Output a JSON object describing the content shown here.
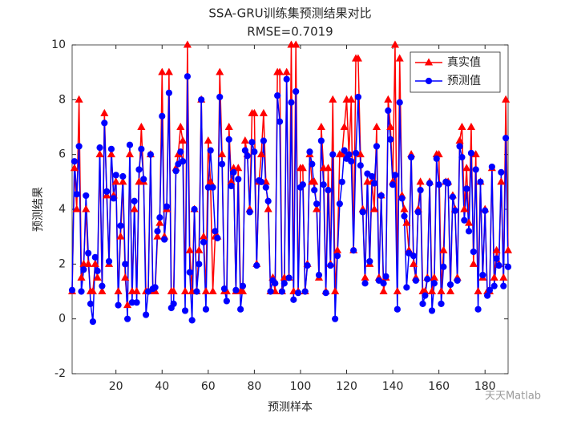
{
  "chart_data": {
    "type": "line",
    "title": "SSA-GRU训练集预测结果对比",
    "subtitle": "RMSE=0.7019",
    "xlabel": "预测样本",
    "ylabel": "预测结果",
    "watermark": "天天Matlab",
    "legend": "northeast",
    "xlim": [
      1,
      190
    ],
    "ylim": [
      -2,
      10
    ],
    "xticks": [
      20,
      40,
      60,
      80,
      100,
      120,
      140,
      160,
      180
    ],
    "yticks": [
      -2,
      0,
      2,
      4,
      6,
      8,
      10
    ],
    "x": [
      1,
      2,
      3,
      4,
      5,
      6,
      7,
      8,
      9,
      10,
      11,
      12,
      13,
      14,
      15,
      16,
      17,
      18,
      19,
      20,
      21,
      22,
      23,
      24,
      25,
      26,
      27,
      28,
      29,
      30,
      31,
      32,
      33,
      34,
      35,
      36,
      37,
      38,
      39,
      40,
      41,
      42,
      43,
      44,
      45,
      46,
      47,
      48,
      49,
      50,
      51,
      52,
      53,
      54,
      55,
      56,
      57,
      58,
      59,
      60,
      61,
      62,
      63,
      64,
      65,
      66,
      67,
      68,
      69,
      70,
      71,
      72,
      73,
      74,
      75,
      76,
      77,
      78,
      79,
      80,
      81,
      82,
      83,
      84,
      85,
      86,
      87,
      88,
      89,
      90,
      91,
      92,
      93,
      94,
      95,
      96,
      97,
      98,
      99,
      100,
      101,
      102,
      103,
      104,
      105,
      106,
      107,
      108,
      109,
      110,
      111,
      112,
      113,
      114,
      115,
      116,
      117,
      118,
      119,
      120,
      121,
      122,
      123,
      124,
      125,
      126,
      127,
      128,
      129,
      130,
      131,
      132,
      133,
      134,
      135,
      136,
      137,
      138,
      139,
      140,
      141,
      142,
      143,
      144,
      145,
      146,
      147,
      148,
      149,
      150,
      151,
      152,
      153,
      154,
      155,
      156,
      157,
      158,
      159,
      160,
      161,
      162,
      163,
      164,
      165,
      166,
      167,
      168,
      169,
      170,
      171,
      172,
      173,
      174,
      175,
      176,
      177,
      178,
      179,
      180,
      181,
      182,
      183,
      184,
      185,
      186,
      187,
      188,
      189,
      190
    ],
    "series": [
      {
        "name": "真实值",
        "color": "#ff0000",
        "marker": "triangle",
        "values": [
          1,
          5.5,
          4,
          8,
          1.5,
          2,
          4,
          2,
          1,
          1,
          2,
          1.5,
          6,
          1,
          7.5,
          4.5,
          2,
          6,
          4.5,
          5,
          1,
          3,
          5,
          1.5,
          0.5,
          6,
          1,
          4,
          1,
          5,
          7,
          5,
          1,
          1,
          6,
          1,
          1,
          3,
          3.5,
          9,
          3,
          4,
          9,
          1,
          1,
          5.5,
          6,
          7,
          6.5,
          1,
          10,
          2.5,
          1,
          4,
          1,
          2.5,
          8,
          3,
          1,
          6.5,
          5,
          1,
          3,
          3,
          9,
          6,
          1,
          1,
          7,
          5,
          5.5,
          1,
          5.5,
          1,
          1,
          6.5,
          6,
          4,
          7.5,
          7.5,
          2,
          5,
          6,
          7.5,
          5,
          4,
          1,
          1.5,
          1,
          9,
          9,
          1,
          1.5,
          9,
          1.5,
          10,
          1,
          10,
          1,
          5.5,
          5.5,
          1,
          2,
          6,
          5,
          5,
          4,
          1.5,
          7,
          5.5,
          1,
          5.5,
          2,
          8,
          1,
          2.5,
          6,
          6,
          7,
          8,
          6,
          8,
          2.5,
          9.5,
          9.5,
          6,
          4,
          1.5,
          5,
          2,
          5,
          4,
          7,
          1.5,
          4.5,
          1,
          1.5,
          8,
          7,
          5,
          10,
          1,
          9.5,
          4.5,
          4,
          3.5,
          2.5,
          6,
          2,
          1.5,
          4,
          5,
          1,
          1,
          1.5,
          5,
          1,
          1.5,
          6,
          6,
          1,
          2.5,
          5,
          5,
          1,
          4.5,
          4,
          1.5,
          6.5,
          7,
          4,
          5.5,
          3.5,
          7,
          2,
          6,
          1,
          5,
          1.5,
          4,
          1,
          1,
          5.5,
          1.5,
          2.5,
          2,
          5,
          1.5,
          8,
          2.5
        ]
      },
      {
        "name": "预测值",
        "color": "#0000ff",
        "marker": "circle",
        "values": [
          1.05,
          5.75,
          4.55,
          6.3,
          1.0,
          1.8,
          4.5,
          2.4,
          0.55,
          -0.1,
          2.25,
          1.75,
          6.25,
          1.2,
          7.15,
          4.65,
          2.1,
          6.2,
          4.4,
          5.25,
          0.5,
          3.4,
          5.2,
          2.0,
          0.0,
          6.35,
          0.6,
          4.3,
          0.6,
          5.45,
          6.2,
          5.1,
          0.15,
          1.0,
          6.0,
          1.1,
          1.15,
          3.2,
          3.7,
          7.4,
          2.9,
          4.1,
          8.25,
          0.4,
          0.55,
          5.4,
          5.65,
          6.1,
          5.75,
          0.3,
          8.85,
          1.7,
          -0.05,
          4.0,
          1.0,
          2.0,
          8.0,
          2.8,
          0.35,
          4.8,
          6.15,
          4.8,
          3.2,
          2.95,
          8.1,
          5.65,
          1.1,
          0.65,
          6.55,
          4.85,
          5.35,
          1.05,
          5.1,
          0.35,
          1.2,
          6.15,
          5.95,
          3.9,
          6.45,
          6.1,
          1.95,
          5.05,
          5.0,
          6.5,
          4.8,
          4.3,
          1.0,
          1.4,
          1.3,
          8.15,
          7.2,
          1.0,
          1.3,
          8.75,
          1.5,
          7.9,
          0.7,
          8.3,
          0.95,
          4.8,
          4.9,
          1.0,
          1.95,
          6.1,
          5.65,
          4.7,
          4.2,
          1.6,
          6.5,
          4.9,
          0.95,
          4.7,
          1.95,
          6.0,
          0.0,
          2.3,
          4.2,
          5.0,
          6.15,
          5.85,
          6.0,
          5.75,
          2.5,
          6.05,
          8.1,
          5.6,
          3.9,
          1.3,
          5.3,
          2.1,
          5.2,
          4.95,
          6.3,
          1.4,
          4.5,
          1.3,
          1.55,
          7.6,
          6.55,
          4.9,
          5.25,
          0.35,
          7.9,
          4.4,
          3.75,
          1.15,
          2.4,
          5.9,
          2.3,
          1.4,
          3.9,
          4.7,
          0.55,
          0.85,
          1.45,
          4.95,
          0.3,
          1.3,
          5.85,
          4.9,
          0.55,
          1.9,
          5.0,
          4.95,
          1.25,
          4.45,
          3.95,
          1.4,
          6.3,
          5.9,
          3.6,
          4.75,
          3.2,
          6.05,
          2.45,
          5.45,
          0.35,
          5.0,
          1.6,
          3.95,
          0.85,
          1.05,
          5.55,
          1.2,
          2.2,
          1.95,
          5.35,
          1.2,
          6.6,
          1.9
        ]
      }
    ]
  }
}
